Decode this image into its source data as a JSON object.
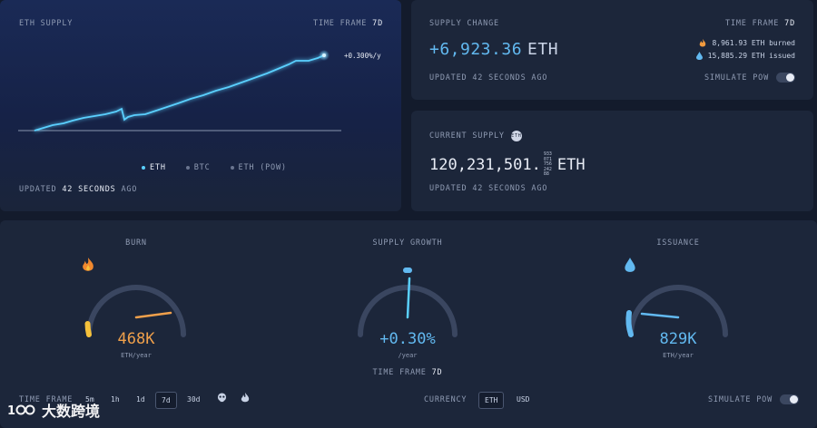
{
  "supply_chart": {
    "title": "ETH SUPPLY",
    "timeframe_label": "TIME FRAME",
    "timeframe_value": "7d",
    "rate_label": "+0.300%/y",
    "legend": [
      "ETH",
      "BTC",
      "ETH (PoW)"
    ],
    "updated_prefix": "UPDATED",
    "updated_value": "42 SECONDS",
    "updated_suffix": "AGO",
    "colors": {
      "eth": "#5ad0ff",
      "btc": "#7d8aa5",
      "pow": "#7d8aa5"
    }
  },
  "supply_change": {
    "title": "SUPPLY CHANGE",
    "timeframe_label": "TIME FRAME",
    "timeframe_value": "7d",
    "value": "+6,923.36",
    "unit": "ETH",
    "burned": "8,961.93 ETH burned",
    "issued": "15,885.29 ETH issued",
    "updated": "UPDATED 42 SECONDS AGO",
    "simulate": "SIMULATE PoW"
  },
  "current_supply": {
    "title": "CURRENT SUPPLY",
    "badge": "ETH",
    "integer": "120,231,501.",
    "decimals": [
      "9",
      "3",
      "3",
      "0",
      "7",
      "1",
      "7",
      "5",
      "6",
      "2",
      "4",
      "2",
      "8",
      "8"
    ],
    "unit": "ETH",
    "updated": "UPDATED 42 SECONDS AGO"
  },
  "gauges": {
    "burn": {
      "title": "BURN",
      "value": "468K",
      "unit": "ETH/year",
      "color": "#f0a04b",
      "level": 0.35
    },
    "growth": {
      "title": "SUPPLY GROWTH",
      "value": "+0.30%",
      "unit": "/year",
      "color": "#62b9f0",
      "level": 0.52,
      "tf_label": "TIME FRAME",
      "tf_value": "7d"
    },
    "issuance": {
      "title": "ISSUANCE",
      "value": "829K",
      "unit": "ETH/year",
      "color": "#62b9f0",
      "level": 0.4
    }
  },
  "bottom": {
    "timeframe_label": "TIME FRAME",
    "timeframes": [
      "5m",
      "1h",
      "1d",
      "7d",
      "30d"
    ],
    "active_timeframe": "7d",
    "currency_label": "CURRENCY",
    "currencies": [
      "ETH",
      "USD"
    ],
    "active_currency": "ETH",
    "simulate": "SIMULATE PoW"
  },
  "watermark": {
    "text": "大数跨境"
  }
}
